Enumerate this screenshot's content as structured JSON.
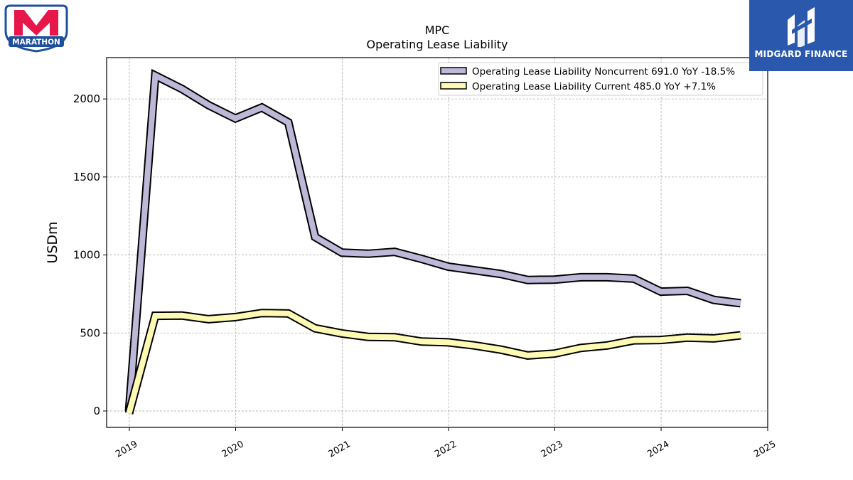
{
  "logos": {
    "left_text": "MARATHON",
    "right_text": "MIDGARD FINANCE"
  },
  "colors": {
    "noncurrent": "#bdb8d8",
    "current": "#fdfab4",
    "outline": "#000000",
    "marathon_red": "#e8174a",
    "marathon_blue": "#1d4f9c",
    "midgard_blue": "#2a58ad"
  },
  "chart_data": {
    "type": "line",
    "title": "MPC",
    "subtitle": "Operating Lease Liability",
    "xlabel": "",
    "ylabel": "USDm",
    "xlim": [
      "2018-10-15",
      "2025-01-01"
    ],
    "ylim": [
      -105,
      2265
    ],
    "yticks": [
      0,
      500,
      1000,
      1500,
      2000
    ],
    "xticks": [
      "2019",
      "2020",
      "2021",
      "2022",
      "2023",
      "2024",
      "2025"
    ],
    "grid": true,
    "legend_position": "top-right",
    "x": [
      "2018-12-31",
      "2019-03-31",
      "2019-06-30",
      "2019-09-30",
      "2019-12-31",
      "2020-03-31",
      "2020-06-30",
      "2020-09-30",
      "2020-12-31",
      "2021-03-31",
      "2021-06-30",
      "2021-09-30",
      "2021-12-31",
      "2022-03-31",
      "2022-06-30",
      "2022-09-30",
      "2022-12-31",
      "2023-03-31",
      "2023-06-30",
      "2023-09-30",
      "2023-12-31",
      "2024-03-31",
      "2024-06-30",
      "2024-09-30"
    ],
    "series": [
      {
        "name": "Operating Lease Liability Noncurrent",
        "legend_label": "Operating Lease Liability Noncurrent  691.0 YoY -18.5%",
        "values": [
          0,
          2150,
          2065,
          1960,
          1875,
          1945,
          1850,
          1115,
          1015,
          1008,
          1020,
          975,
          925,
          902,
          878,
          840,
          842,
          857,
          857,
          848,
          765,
          770,
          712,
          691
        ]
      },
      {
        "name": "Operating Lease Liability Current",
        "legend_label": "Operating Lease Liability Current  485.0 YoY +7.1%",
        "values": [
          -15,
          610,
          612,
          588,
          602,
          628,
          625,
          530,
          497,
          475,
          473,
          445,
          440,
          420,
          393,
          356,
          368,
          404,
          420,
          453,
          455,
          470,
          465,
          485
        ]
      }
    ]
  }
}
